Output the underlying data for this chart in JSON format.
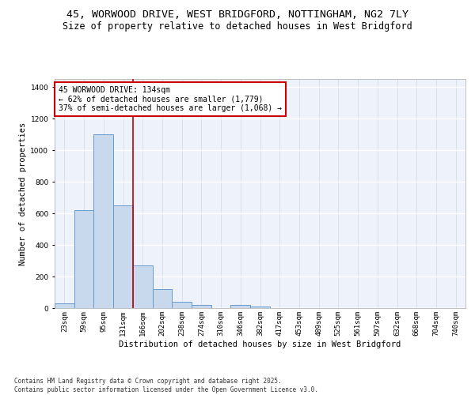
{
  "title_line1": "45, WORWOOD DRIVE, WEST BRIDGFORD, NOTTINGHAM, NG2 7LY",
  "title_line2": "Size of property relative to detached houses in West Bridgford",
  "xlabel": "Distribution of detached houses by size in West Bridgford",
  "ylabel": "Number of detached properties",
  "bar_labels": [
    "23sqm",
    "59sqm",
    "95sqm",
    "131sqm",
    "166sqm",
    "202sqm",
    "238sqm",
    "274sqm",
    "310sqm",
    "346sqm",
    "382sqm",
    "417sqm",
    "453sqm",
    "489sqm",
    "525sqm",
    "561sqm",
    "597sqm",
    "632sqm",
    "668sqm",
    "704sqm",
    "740sqm"
  ],
  "bar_values": [
    30,
    620,
    1100,
    650,
    270,
    120,
    40,
    20,
    0,
    20,
    10,
    0,
    0,
    0,
    0,
    0,
    0,
    0,
    0,
    0,
    0
  ],
  "bar_color": "#c8d9ed",
  "bar_edge_color": "#6699cc",
  "vline_x": 3.5,
  "vline_color": "#bb0000",
  "background_color": "#eef2fb",
  "grid_color": "#d0d8e8",
  "annotation_text": "45 WORWOOD DRIVE: 134sqm\n← 62% of detached houses are smaller (1,779)\n37% of semi-detached houses are larger (1,068) →",
  "annotation_box_facecolor": "#ffffff",
  "annotation_box_edgecolor": "#cc0000",
  "ylim": [
    0,
    1450
  ],
  "yticks": [
    0,
    200,
    400,
    600,
    800,
    1000,
    1200,
    1400
  ],
  "footer_text": "Contains HM Land Registry data © Crown copyright and database right 2025.\nContains public sector information licensed under the Open Government Licence v3.0.",
  "title_fontsize": 9.5,
  "subtitle_fontsize": 8.5,
  "axis_label_fontsize": 7.5,
  "tick_fontsize": 6.5,
  "annotation_fontsize": 7,
  "ylabel_fontsize": 7.5
}
